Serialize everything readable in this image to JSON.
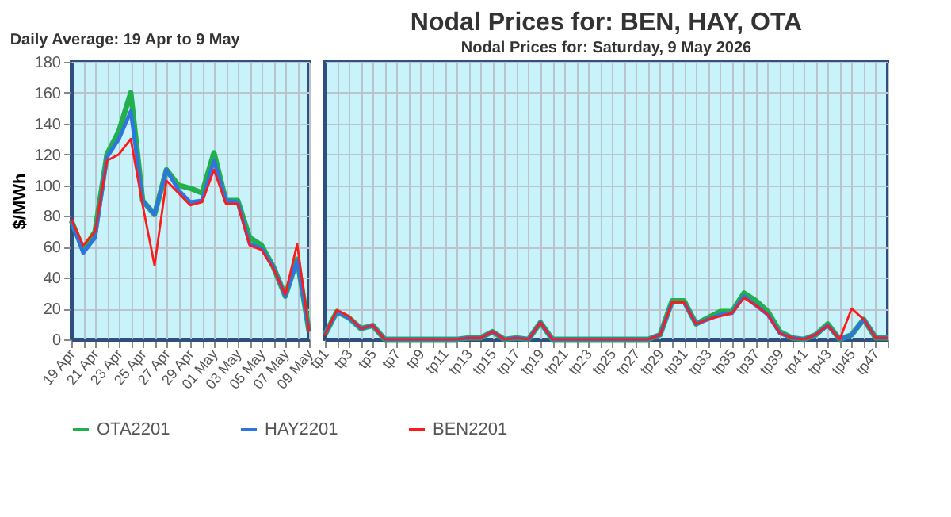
{
  "chart_data": [
    {
      "type": "line",
      "subtitle": "Daily Average: 19 Apr to 9 May",
      "ylabel": "$/MWh",
      "categories": [
        "19 Apr",
        null,
        "21 Apr",
        null,
        "23 Apr",
        null,
        "25 Apr",
        null,
        "27 Apr",
        null,
        "29 Apr",
        null,
        "01 May",
        null,
        "03 May",
        null,
        "05 May",
        null,
        "07 May",
        null,
        "09 May"
      ],
      "ylim": [
        0,
        180
      ],
      "yticks": [
        0,
        20,
        40,
        60,
        80,
        100,
        120,
        140,
        160,
        180
      ],
      "grid": true,
      "legend": "bottom",
      "series": [
        {
          "name": "OTA2201",
          "color": "#21b04b",
          "values": [
            77,
            58,
            70,
            120,
            135,
            160,
            90,
            81,
            110,
            100,
            98,
            95,
            121,
            90,
            90,
            66,
            61,
            47,
            28,
            52,
            5
          ]
        },
        {
          "name": "HAY2201",
          "color": "#2f75e0",
          "values": [
            77,
            56,
            66,
            118,
            130,
            148,
            90,
            81,
            110,
            97,
            89,
            90,
            116,
            90,
            89,
            62,
            59,
            47,
            28,
            51,
            5
          ]
        },
        {
          "name": "BEN2201",
          "color": "#ff1a1a",
          "values": [
            78,
            61,
            70,
            116,
            120,
            130,
            87,
            48,
            103,
            95,
            87,
            89,
            110,
            88,
            88,
            61,
            58,
            46,
            29,
            62,
            5
          ]
        }
      ]
    },
    {
      "type": "line",
      "title": "Nodal Prices for: BEN, HAY, OTA",
      "subtitle": "Nodal Prices for: Saturday, 9 May 2026",
      "categories": [
        "tp1",
        null,
        "tp3",
        null,
        "tp5",
        null,
        "tp7",
        null,
        "tp9",
        null,
        "tp11",
        null,
        "tp13",
        null,
        "tp15",
        null,
        "tp17",
        null,
        "tp19",
        null,
        "tp21",
        null,
        "tp23",
        null,
        "tp25",
        null,
        "tp27",
        null,
        "tp29",
        null,
        "tp31",
        null,
        "tp33",
        null,
        "tp35",
        null,
        "tp37",
        null,
        "tp39",
        null,
        "tp41",
        null,
        "tp43",
        null,
        "tp45",
        null,
        "tp47",
        null
      ],
      "ylim": [
        0,
        180
      ],
      "yticks": [
        0,
        20,
        40,
        60,
        80,
        100,
        120,
        140,
        160,
        180
      ],
      "grid": true,
      "tick_labels": "x",
      "series": [
        {
          "color": "#21b04b",
          "values": [
            3,
            18,
            14,
            7,
            9,
            0,
            0,
            0,
            0,
            0,
            0,
            0,
            1,
            1,
            5,
            0,
            1,
            0,
            11,
            0,
            0,
            0,
            0,
            0,
            0,
            0,
            0,
            0,
            3,
            25,
            25,
            10,
            14,
            18,
            18,
            30,
            25,
            18,
            5,
            1,
            0,
            3,
            10,
            0,
            3,
            13,
            1,
            1
          ]
        },
        {
          "color": "#2f75e0",
          "values": [
            3,
            18,
            14,
            7,
            9,
            0,
            0,
            0,
            0,
            0,
            0,
            0,
            1,
            1,
            5,
            0,
            1,
            0,
            11,
            0,
            0,
            0,
            0,
            0,
            0,
            0,
            0,
            0,
            3,
            24,
            24,
            10,
            13,
            16,
            17,
            28,
            22,
            16,
            4,
            1,
            0,
            3,
            9,
            0,
            3,
            13,
            1,
            1
          ]
        },
        {
          "color": "#ff1a1a",
          "values": [
            3,
            19,
            15,
            7,
            9,
            0,
            0,
            0,
            0,
            0,
            0,
            0,
            1,
            1,
            5,
            0,
            1,
            0,
            11,
            0,
            0,
            0,
            0,
            0,
            0,
            0,
            0,
            0,
            3,
            24,
            24,
            10,
            13,
            15,
            17,
            27,
            22,
            16,
            4,
            1,
            0,
            3,
            9,
            0,
            20,
            13,
            1,
            1
          ]
        }
      ]
    }
  ]
}
